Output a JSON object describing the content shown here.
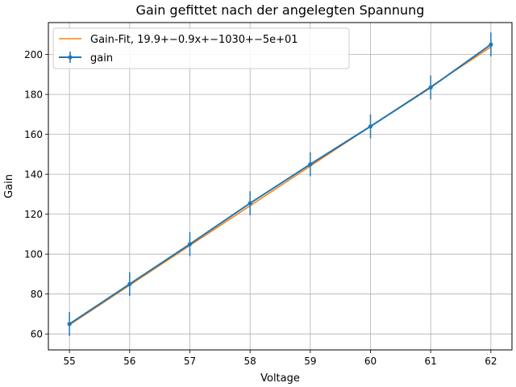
{
  "chart_data": {
    "type": "line",
    "title": "Gain gefittet nach der angelegten Spannung",
    "xlabel": "Voltage",
    "ylabel": "Gain",
    "xlim": [
      54.65,
      62.35
    ],
    "ylim": [
      52,
      216
    ],
    "xticks": [
      55,
      56,
      57,
      58,
      59,
      60,
      61,
      62
    ],
    "yticks": [
      60,
      80,
      100,
      120,
      140,
      160,
      180,
      200
    ],
    "grid": true,
    "legend_position": "top-left",
    "series": [
      {
        "name": "Gain-Fit, 19.9+−0.9x+−1030+−5e+01",
        "kind": "fit",
        "color": "#ff7f0e",
        "x": [
          55,
          56,
          57,
          58,
          59,
          60,
          61,
          62
        ],
        "y": [
          64.5,
          84.4,
          104.3,
          124.2,
          144.1,
          164.0,
          183.9,
          203.8
        ]
      },
      {
        "name": "gain",
        "kind": "errorbar",
        "color": "#1f77b4",
        "x": [
          55,
          56,
          57,
          58,
          59,
          60,
          61,
          62
        ],
        "y": [
          65,
          85,
          105,
          125.5,
          145,
          164,
          183.5,
          205
        ],
        "yerr": [
          6,
          6,
          6,
          6,
          6,
          6,
          6,
          6
        ]
      }
    ]
  }
}
